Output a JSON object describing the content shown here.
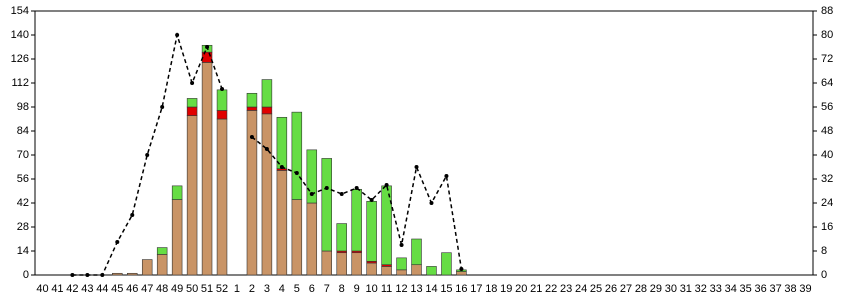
{
  "chart_data": {
    "type": "bar",
    "stacked": true,
    "categories": [
      "40",
      "41",
      "42",
      "43",
      "44",
      "45",
      "46",
      "47",
      "48",
      "49",
      "50",
      "51",
      "52",
      "1",
      "2",
      "3",
      "4",
      "5",
      "6",
      "7",
      "8",
      "9",
      "10",
      "11",
      "12",
      "13",
      "14",
      "15",
      "16",
      "17",
      "18",
      "19",
      "20",
      "21",
      "22",
      "23",
      "24",
      "25",
      "26",
      "27",
      "28",
      "29",
      "30",
      "31",
      "32",
      "33",
      "34",
      "35",
      "36",
      "37",
      "38",
      "39"
    ],
    "series": [
      {
        "name": "brown",
        "color": "#c99466",
        "values": [
          0,
          0,
          0,
          0,
          0,
          1,
          1,
          9,
          12,
          44,
          93,
          124,
          91,
          0,
          96,
          94,
          61,
          44,
          42,
          14,
          13,
          13,
          7,
          5,
          3,
          6,
          0,
          0,
          2,
          0,
          0,
          0,
          0,
          0,
          0,
          0,
          0,
          0,
          0,
          0,
          0,
          0,
          0,
          0,
          0,
          0,
          0,
          0,
          0,
          0,
          0,
          0
        ]
      },
      {
        "name": "red",
        "color": "#e00000",
        "values": [
          0,
          0,
          0,
          0,
          0,
          0,
          0,
          0,
          0,
          0,
          5,
          6,
          5,
          0,
          2,
          4,
          1,
          0,
          0,
          0,
          1,
          1,
          1,
          1,
          0,
          0,
          0,
          0,
          0,
          0,
          0,
          0,
          0,
          0,
          0,
          0,
          0,
          0,
          0,
          0,
          0,
          0,
          0,
          0,
          0,
          0,
          0,
          0,
          0,
          0,
          0,
          0
        ]
      },
      {
        "name": "green",
        "color": "#66dd44",
        "values": [
          0,
          0,
          0,
          0,
          0,
          0,
          0,
          0,
          4,
          8,
          5,
          4,
          12,
          0,
          8,
          16,
          30,
          51,
          31,
          54,
          16,
          36,
          35,
          46,
          7,
          15,
          5,
          13,
          1,
          0,
          0,
          0,
          0,
          0,
          0,
          0,
          0,
          0,
          0,
          0,
          0,
          0,
          0,
          0,
          0,
          0,
          0,
          0,
          0,
          0,
          0,
          0
        ]
      },
      {
        "name": "line",
        "type": "line",
        "axis": "y2",
        "color": "#000000",
        "values": [
          null,
          null,
          0,
          0,
          0,
          11,
          20,
          40,
          56,
          80,
          64,
          76,
          62,
          null,
          46,
          42,
          36,
          34,
          27,
          29,
          27,
          29,
          25,
          30,
          10,
          36,
          24,
          33,
          2,
          null,
          null,
          null,
          null,
          null,
          null,
          null,
          null,
          null,
          null,
          null,
          null,
          null,
          null,
          null,
          null,
          null,
          null,
          null,
          null,
          null,
          null,
          null
        ]
      }
    ],
    "ylim": [
      0,
      154
    ],
    "yticks": [
      0,
      14,
      28,
      42,
      56,
      70,
      84,
      98,
      112,
      126,
      140,
      154
    ],
    "y2lim": [
      0,
      88
    ],
    "y2ticks": [
      0,
      8,
      16,
      24,
      32,
      40,
      48,
      56,
      64,
      72,
      80,
      88
    ]
  }
}
